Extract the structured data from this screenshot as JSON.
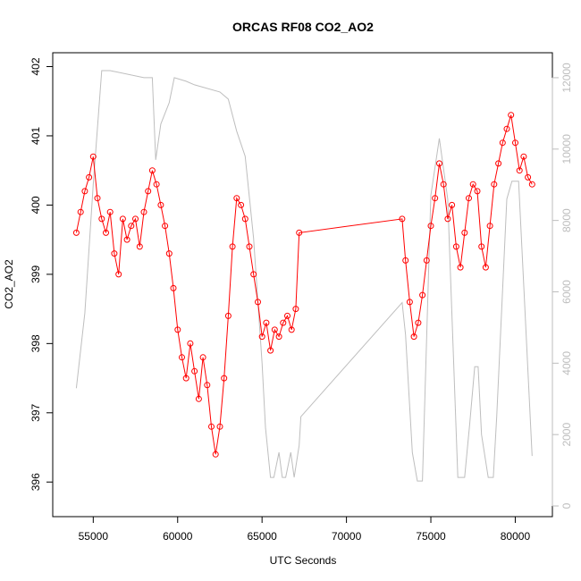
{
  "chart_data": {
    "type": "line",
    "title": "ORCAS RF08 CO2_AO2",
    "xlabel": "UTC Seconds",
    "ylabel": "CO2_AO2",
    "y2label": "",
    "xlim": [
      52600,
      82200
    ],
    "ylim": [
      395.5,
      402.2
    ],
    "y2lim": [
      -300,
      12700
    ],
    "xticks": [
      55000,
      60000,
      65000,
      70000,
      75000,
      80000
    ],
    "yticks": [
      396,
      397,
      398,
      399,
      400,
      401,
      402
    ],
    "y2ticks": [
      0,
      2000,
      4000,
      6000,
      8000,
      10000,
      12000
    ],
    "colors": {
      "co2": "#ff0000",
      "altitude": "#bebebe",
      "frame": "#000000"
    },
    "series": [
      {
        "name": "",
        "axis": "left",
        "style": "points-and-line",
        "color": "#ff0000",
        "x": [
          54000,
          54250,
          54500,
          54750,
          55000,
          55250,
          55500,
          55750,
          56000,
          56250,
          56500,
          56750,
          57000,
          57250,
          57500,
          57750,
          58000,
          58250,
          58500,
          58750,
          59000,
          59250,
          59500,
          59750,
          60000,
          60250,
          60500,
          60750,
          61000,
          61250,
          61500,
          61750,
          62000,
          62250,
          62500,
          62750,
          63000,
          63250,
          63500,
          63750,
          64000,
          64250,
          64500,
          64750,
          65000,
          65250,
          65500,
          65750,
          66000,
          66250,
          66500,
          66750,
          67000,
          67200,
          73300,
          73500,
          73750,
          74000,
          74250,
          74500,
          74750,
          75000,
          75250,
          75500,
          75750,
          76000,
          76250,
          76500,
          76750,
          77000,
          77250,
          77500,
          77750,
          78000,
          78250,
          78500,
          78750,
          79000,
          79250,
          79500,
          79750,
          80000,
          80250,
          80500,
          80750,
          81000
        ],
        "values": [
          399.6,
          399.9,
          400.2,
          400.4,
          400.7,
          400.1,
          399.8,
          399.6,
          399.9,
          399.3,
          399.0,
          399.8,
          399.5,
          399.7,
          399.8,
          399.4,
          399.9,
          400.2,
          400.5,
          400.3,
          400.0,
          399.7,
          399.3,
          398.8,
          398.2,
          397.8,
          397.5,
          398.0,
          397.6,
          397.2,
          397.8,
          397.4,
          396.8,
          396.4,
          396.8,
          397.5,
          398.4,
          399.4,
          400.1,
          400.0,
          399.8,
          399.4,
          399.0,
          398.6,
          398.1,
          398.3,
          397.9,
          398.2,
          398.1,
          398.3,
          398.4,
          398.2,
          398.5,
          399.6,
          399.8,
          399.2,
          398.6,
          398.1,
          398.3,
          398.7,
          399.2,
          399.7,
          400.1,
          400.6,
          400.3,
          399.8,
          400.0,
          399.4,
          399.1,
          399.6,
          400.1,
          400.3,
          400.2,
          399.4,
          399.1,
          399.7,
          400.3,
          400.6,
          400.9,
          401.1,
          401.3,
          400.9,
          400.5,
          400.7,
          400.4,
          400.3
        ]
      },
      {
        "name": "",
        "axis": "right",
        "style": "line",
        "color": "#bebebe",
        "x": [
          54000,
          54500,
          55000,
          55500,
          56000,
          58000,
          58500,
          58700,
          59000,
          59500,
          59800,
          60500,
          61000,
          62500,
          63000,
          63500,
          64000,
          64500,
          65000,
          65200,
          65500,
          65700,
          66000,
          66200,
          66400,
          66700,
          66900,
          67200,
          67300,
          73300,
          73500,
          73900,
          74200,
          74500,
          75000,
          75500,
          76000,
          76600,
          77000,
          77300,
          77600,
          77800,
          78000,
          78400,
          78700,
          78900,
          79500,
          79800,
          80200,
          80500,
          81000
        ],
        "values": [
          3300,
          5400,
          9000,
          12200,
          12200,
          12000,
          12000,
          9700,
          10700,
          11300,
          12000,
          11900,
          11800,
          11600,
          11400,
          10500,
          9800,
          7500,
          4000,
          2200,
          800,
          800,
          1500,
          800,
          800,
          1500,
          800,
          1700,
          2500,
          5700,
          4800,
          1500,
          700,
          700,
          8700,
          10300,
          8600,
          800,
          800,
          2300,
          3900,
          3900,
          2000,
          800,
          800,
          2500,
          8600,
          9100,
          9100,
          6200,
          1400
        ]
      }
    ]
  }
}
